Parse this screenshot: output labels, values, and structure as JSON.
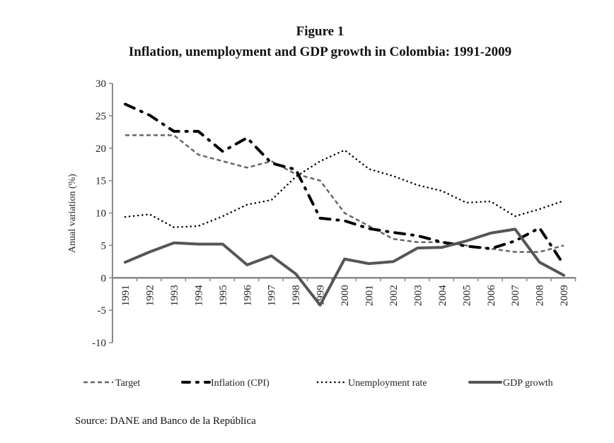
{
  "figure": {
    "title": "Figure 1",
    "subtitle": "Inflation, unemployment and GDP growth in Colombia: 1991-2009",
    "source": "Source: DANE and Banco de la República"
  },
  "chart_data": {
    "type": "line",
    "title": "Inflation, unemployment and GDP growth in Colombia: 1991-2009",
    "xlabel": "",
    "ylabel": "Anual variation (%)",
    "ylim": [
      -10,
      30
    ],
    "yticks": [
      30,
      25,
      20,
      15,
      10,
      5,
      0,
      -5,
      -10
    ],
    "grid": false,
    "legend_position": "bottom",
    "x": [
      "1991",
      "1992",
      "1993",
      "1994",
      "1995",
      "1996",
      "1997",
      "1998",
      "1999",
      "2000",
      "2001",
      "2002",
      "2003",
      "2004",
      "2005",
      "2006",
      "2007",
      "2008",
      "2009"
    ],
    "series": [
      {
        "name": "Target",
        "style": "dashed",
        "color": "#666666",
        "values": [
          22,
          22,
          22,
          19,
          18,
          17,
          18,
          16,
          15,
          10,
          8,
          6,
          5.5,
          5.5,
          5,
          4.5,
          4,
          4,
          5
        ]
      },
      {
        "name": "Inflation (CPI)",
        "style": "dash-dot",
        "color": "#000000",
        "values": [
          26.8,
          25.1,
          22.6,
          22.6,
          19.5,
          21.6,
          17.7,
          16.7,
          9.2,
          8.8,
          7.6,
          7.0,
          6.5,
          5.5,
          4.9,
          4.5,
          5.7,
          7.7,
          2.0
        ]
      },
      {
        "name": "Unemployment rate",
        "style": "dotted",
        "color": "#000000",
        "values": [
          9.4,
          9.8,
          7.8,
          8.0,
          9.5,
          11.3,
          12.0,
          15.6,
          18.0,
          19.7,
          16.8,
          15.7,
          14.3,
          13.4,
          11.6,
          11.8,
          9.5,
          10.6,
          11.9
        ]
      },
      {
        "name": "GDP growth",
        "style": "solid",
        "color": "#555555",
        "values": [
          2.4,
          4.0,
          5.4,
          5.2,
          5.2,
          2.0,
          3.4,
          0.6,
          -4.2,
          2.9,
          2.2,
          2.5,
          4.6,
          4.7,
          5.7,
          6.9,
          7.5,
          2.4,
          0.4
        ]
      }
    ]
  }
}
